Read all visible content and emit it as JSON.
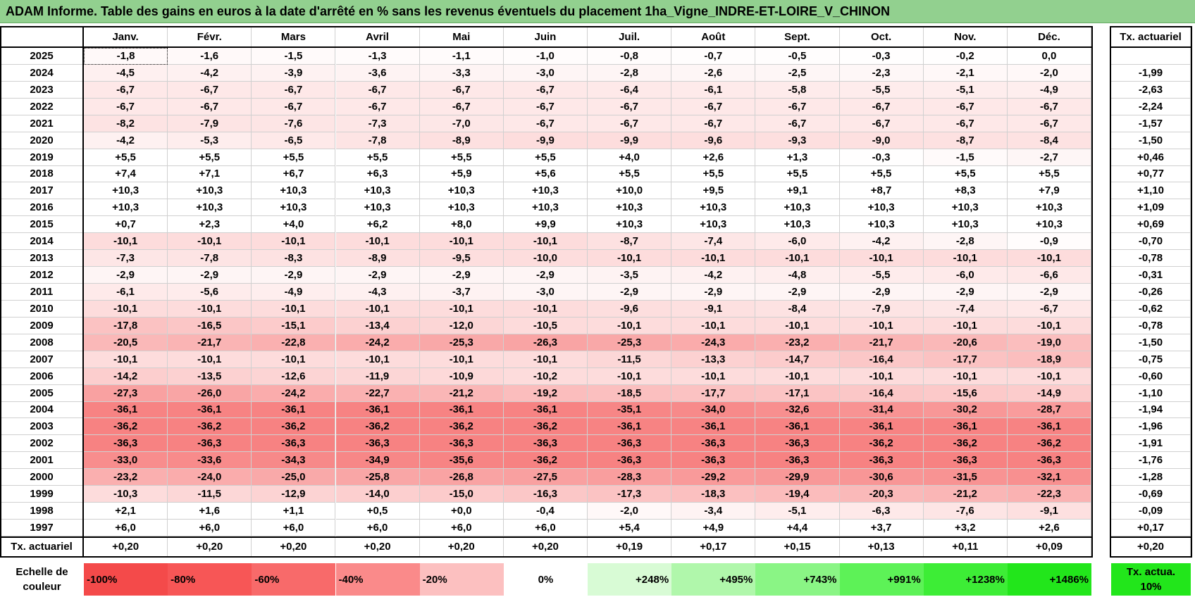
{
  "title": "ADAM Informe. Table des gains en euros à la date d'arrêté en % sans les revenus éventuels du placement 1ha_Vigne_INDRE-ET-LOIRE_V_CHINON",
  "header": {
    "months": [
      "Janv.",
      "Févr.",
      "Mars",
      "Avril",
      "Mai",
      "Juin",
      "Juil.",
      "Août",
      "Sept.",
      "Oct.",
      "Nov.",
      "Déc."
    ],
    "tx": "Tx. actuariel"
  },
  "rows": [
    {
      "year": "2025",
      "values": [
        "-1,8",
        "-1,6",
        "-1,5",
        "-1,3",
        "-1,1",
        "-1,0",
        "-0,8",
        "-0,7",
        "-0,5",
        "-0,3",
        "-0,2",
        "0,0"
      ],
      "tx": null
    },
    {
      "year": "2024",
      "values": [
        "-4,5",
        "-4,2",
        "-3,9",
        "-3,6",
        "-3,3",
        "-3,0",
        "-2,8",
        "-2,6",
        "-2,5",
        "-2,3",
        "-2,1",
        "-2,0"
      ],
      "tx": "-1,99"
    },
    {
      "year": "2023",
      "values": [
        "-6,7",
        "-6,7",
        "-6,7",
        "-6,7",
        "-6,7",
        "-6,7",
        "-6,4",
        "-6,1",
        "-5,8",
        "-5,5",
        "-5,1",
        "-4,9"
      ],
      "tx": "-2,63"
    },
    {
      "year": "2022",
      "values": [
        "-6,7",
        "-6,7",
        "-6,7",
        "-6,7",
        "-6,7",
        "-6,7",
        "-6,7",
        "-6,7",
        "-6,7",
        "-6,7",
        "-6,7",
        "-6,7"
      ],
      "tx": "-2,24"
    },
    {
      "year": "2021",
      "values": [
        "-8,2",
        "-7,9",
        "-7,6",
        "-7,3",
        "-7,0",
        "-6,7",
        "-6,7",
        "-6,7",
        "-6,7",
        "-6,7",
        "-6,7",
        "-6,7"
      ],
      "tx": "-1,57"
    },
    {
      "year": "2020",
      "values": [
        "-4,2",
        "-5,3",
        "-6,5",
        "-7,8",
        "-8,9",
        "-9,9",
        "-9,9",
        "-9,6",
        "-9,3",
        "-9,0",
        "-8,7",
        "-8,4"
      ],
      "tx": "-1,50"
    },
    {
      "year": "2019",
      "values": [
        "+5,5",
        "+5,5",
        "+5,5",
        "+5,5",
        "+5,5",
        "+5,5",
        "+4,0",
        "+2,6",
        "+1,3",
        "-0,3",
        "-1,5",
        "-2,7"
      ],
      "tx": "+0,46"
    },
    {
      "year": "2018",
      "values": [
        "+7,4",
        "+7,1",
        "+6,7",
        "+6,3",
        "+5,9",
        "+5,6",
        "+5,5",
        "+5,5",
        "+5,5",
        "+5,5",
        "+5,5",
        "+5,5"
      ],
      "tx": "+0,77"
    },
    {
      "year": "2017",
      "values": [
        "+10,3",
        "+10,3",
        "+10,3",
        "+10,3",
        "+10,3",
        "+10,3",
        "+10,0",
        "+9,5",
        "+9,1",
        "+8,7",
        "+8,3",
        "+7,9"
      ],
      "tx": "+1,10"
    },
    {
      "year": "2016",
      "values": [
        "+10,3",
        "+10,3",
        "+10,3",
        "+10,3",
        "+10,3",
        "+10,3",
        "+10,3",
        "+10,3",
        "+10,3",
        "+10,3",
        "+10,3",
        "+10,3"
      ],
      "tx": "+1,09"
    },
    {
      "year": "2015",
      "values": [
        "+0,7",
        "+2,3",
        "+4,0",
        "+6,2",
        "+8,0",
        "+9,9",
        "+10,3",
        "+10,3",
        "+10,3",
        "+10,3",
        "+10,3",
        "+10,3"
      ],
      "tx": "+0,69"
    },
    {
      "year": "2014",
      "values": [
        "-10,1",
        "-10,1",
        "-10,1",
        "-10,1",
        "-10,1",
        "-10,1",
        "-8,7",
        "-7,4",
        "-6,0",
        "-4,2",
        "-2,8",
        "-0,9"
      ],
      "tx": "-0,70"
    },
    {
      "year": "2013",
      "values": [
        "-7,3",
        "-7,8",
        "-8,3",
        "-8,9",
        "-9,5",
        "-10,0",
        "-10,1",
        "-10,1",
        "-10,1",
        "-10,1",
        "-10,1",
        "-10,1"
      ],
      "tx": "-0,78"
    },
    {
      "year": "2012",
      "values": [
        "-2,9",
        "-2,9",
        "-2,9",
        "-2,9",
        "-2,9",
        "-2,9",
        "-3,5",
        "-4,2",
        "-4,8",
        "-5,5",
        "-6,0",
        "-6,6"
      ],
      "tx": "-0,31"
    },
    {
      "year": "2011",
      "values": [
        "-6,1",
        "-5,6",
        "-4,9",
        "-4,3",
        "-3,7",
        "-3,0",
        "-2,9",
        "-2,9",
        "-2,9",
        "-2,9",
        "-2,9",
        "-2,9"
      ],
      "tx": "-0,26"
    },
    {
      "year": "2010",
      "values": [
        "-10,1",
        "-10,1",
        "-10,1",
        "-10,1",
        "-10,1",
        "-10,1",
        "-9,6",
        "-9,1",
        "-8,4",
        "-7,9",
        "-7,4",
        "-6,7"
      ],
      "tx": "-0,62"
    },
    {
      "year": "2009",
      "values": [
        "-17,8",
        "-16,5",
        "-15,1",
        "-13,4",
        "-12,0",
        "-10,5",
        "-10,1",
        "-10,1",
        "-10,1",
        "-10,1",
        "-10,1",
        "-10,1"
      ],
      "tx": "-0,78"
    },
    {
      "year": "2008",
      "values": [
        "-20,5",
        "-21,7",
        "-22,8",
        "-24,2",
        "-25,3",
        "-26,3",
        "-25,3",
        "-24,3",
        "-23,2",
        "-21,7",
        "-20,6",
        "-19,0"
      ],
      "tx": "-1,50"
    },
    {
      "year": "2007",
      "values": [
        "-10,1",
        "-10,1",
        "-10,1",
        "-10,1",
        "-10,1",
        "-10,1",
        "-11,5",
        "-13,3",
        "-14,7",
        "-16,4",
        "-17,7",
        "-18,9"
      ],
      "tx": "-0,75"
    },
    {
      "year": "2006",
      "values": [
        "-14,2",
        "-13,5",
        "-12,6",
        "-11,9",
        "-10,9",
        "-10,2",
        "-10,1",
        "-10,1",
        "-10,1",
        "-10,1",
        "-10,1",
        "-10,1"
      ],
      "tx": "-0,60"
    },
    {
      "year": "2005",
      "values": [
        "-27,3",
        "-26,0",
        "-24,2",
        "-22,7",
        "-21,2",
        "-19,2",
        "-18,5",
        "-17,7",
        "-17,1",
        "-16,4",
        "-15,6",
        "-14,9"
      ],
      "tx": "-1,10"
    },
    {
      "year": "2004",
      "values": [
        "-36,1",
        "-36,1",
        "-36,1",
        "-36,1",
        "-36,1",
        "-36,1",
        "-35,1",
        "-34,0",
        "-32,6",
        "-31,4",
        "-30,2",
        "-28,7"
      ],
      "tx": "-1,94"
    },
    {
      "year": "2003",
      "values": [
        "-36,2",
        "-36,2",
        "-36,2",
        "-36,2",
        "-36,2",
        "-36,2",
        "-36,1",
        "-36,1",
        "-36,1",
        "-36,1",
        "-36,1",
        "-36,1"
      ],
      "tx": "-1,96"
    },
    {
      "year": "2002",
      "values": [
        "-36,3",
        "-36,3",
        "-36,3",
        "-36,3",
        "-36,3",
        "-36,3",
        "-36,3",
        "-36,3",
        "-36,3",
        "-36,2",
        "-36,2",
        "-36,2"
      ],
      "tx": "-1,91"
    },
    {
      "year": "2001",
      "values": [
        "-33,0",
        "-33,6",
        "-34,3",
        "-34,9",
        "-35,6",
        "-36,2",
        "-36,3",
        "-36,3",
        "-36,3",
        "-36,3",
        "-36,3",
        "-36,3"
      ],
      "tx": "-1,76"
    },
    {
      "year": "2000",
      "values": [
        "-23,2",
        "-24,0",
        "-25,0",
        "-25,8",
        "-26,8",
        "-27,5",
        "-28,3",
        "-29,2",
        "-29,9",
        "-30,6",
        "-31,5",
        "-32,1"
      ],
      "tx": "-1,28"
    },
    {
      "year": "1999",
      "values": [
        "-10,3",
        "-11,5",
        "-12,9",
        "-14,0",
        "-15,0",
        "-16,3",
        "-17,3",
        "-18,3",
        "-19,4",
        "-20,3",
        "-21,2",
        "-22,3"
      ],
      "tx": "-0,69"
    },
    {
      "year": "1998",
      "values": [
        "+2,1",
        "+1,6",
        "+1,1",
        "+0,5",
        "+0,0",
        "-0,4",
        "-2,0",
        "-3,4",
        "-5,1",
        "-6,3",
        "-7,6",
        "-9,1"
      ],
      "tx": "-0,09"
    },
    {
      "year": "1997",
      "values": [
        "+6,0",
        "+6,0",
        "+6,0",
        "+6,0",
        "+6,0",
        "+6,0",
        "+5,4",
        "+4,9",
        "+4,4",
        "+3,7",
        "+3,2",
        "+2,6"
      ],
      "tx": "+0,17"
    }
  ],
  "footer": {
    "label": "Tx. actuariel",
    "values": [
      "+0,20",
      "+0,20",
      "+0,20",
      "+0,20",
      "+0,20",
      "+0,20",
      "+0,19",
      "+0,17",
      "+0,15",
      "+0,13",
      "+0,11",
      "+0,09"
    ],
    "tx": "+0,20"
  },
  "scale": {
    "label": "Echelle de couleur",
    "values": [
      "-100%",
      "-80%",
      "-60%",
      "-40%",
      "-20%",
      "0%",
      "+248%",
      "+495%",
      "+743%",
      "+991%",
      "+1238%",
      "+1486%"
    ],
    "tx": "Tx. actua. 10%"
  }
}
